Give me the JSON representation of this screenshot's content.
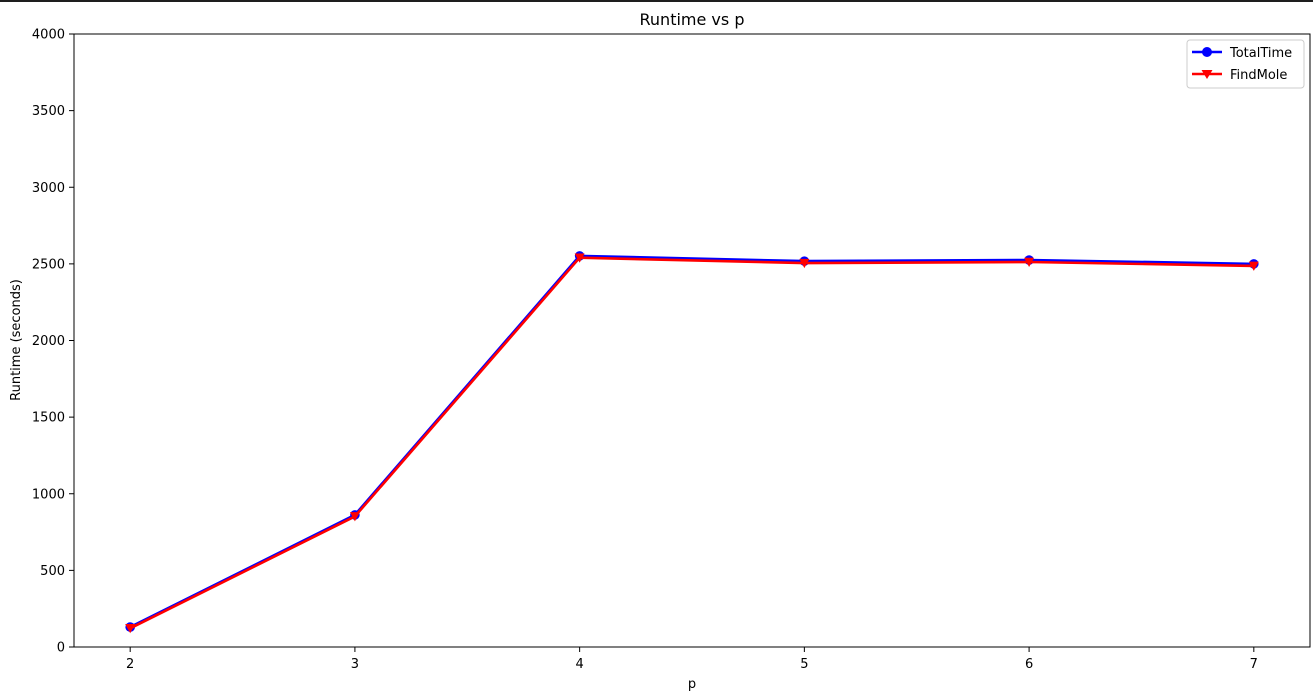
{
  "chart_data": {
    "type": "line",
    "title": "Runtime vs p",
    "xlabel": "p",
    "ylabel": "Runtime (seconds)",
    "x": [
      2,
      3,
      4,
      5,
      6,
      7
    ],
    "xlim": [
      1.75,
      7.25
    ],
    "ylim": [
      0,
      4000
    ],
    "xticks": [
      2,
      3,
      4,
      5,
      6,
      7
    ],
    "yticks": [
      0,
      500,
      1000,
      1500,
      2000,
      2500,
      3000,
      3500,
      4000
    ],
    "grid": false,
    "legend_position": "top-right",
    "series": [
      {
        "name": "TotalTime",
        "color": "#0000ff",
        "marker": "circle",
        "values": [
          130,
          862,
          2552,
          2518,
          2525,
          2500
        ]
      },
      {
        "name": "FindMole",
        "color": "#ff0000",
        "marker": "triangle-down",
        "values": [
          122,
          852,
          2540,
          2505,
          2512,
          2487
        ]
      }
    ]
  }
}
